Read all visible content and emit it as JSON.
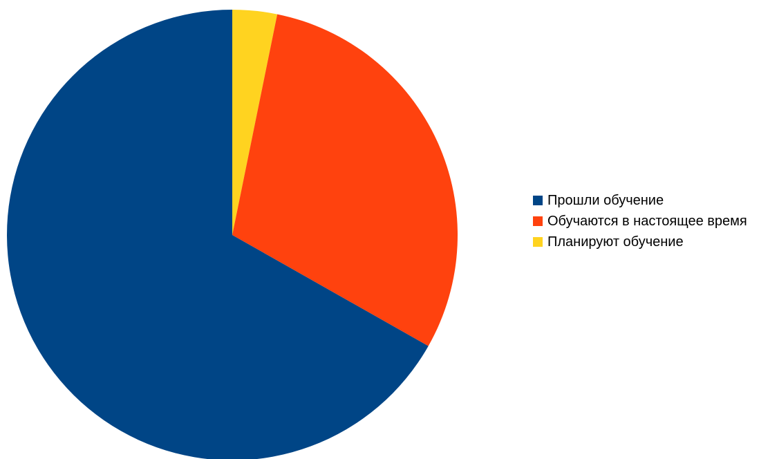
{
  "chart_data": {
    "type": "pie",
    "title": "",
    "legend_position": "right",
    "start_angle_deg": 0,
    "direction": "clockwise",
    "slices": [
      {
        "label": "Планируют обучение",
        "value": 3.2,
        "color": "#FFD320"
      },
      {
        "label": "Обучаются в настоящее время",
        "value": 30.0,
        "color": "#FF420E"
      },
      {
        "label": "Прошли обучение",
        "value": 66.8,
        "color": "#004586"
      }
    ],
    "legend_order": [
      2,
      1,
      0
    ]
  }
}
